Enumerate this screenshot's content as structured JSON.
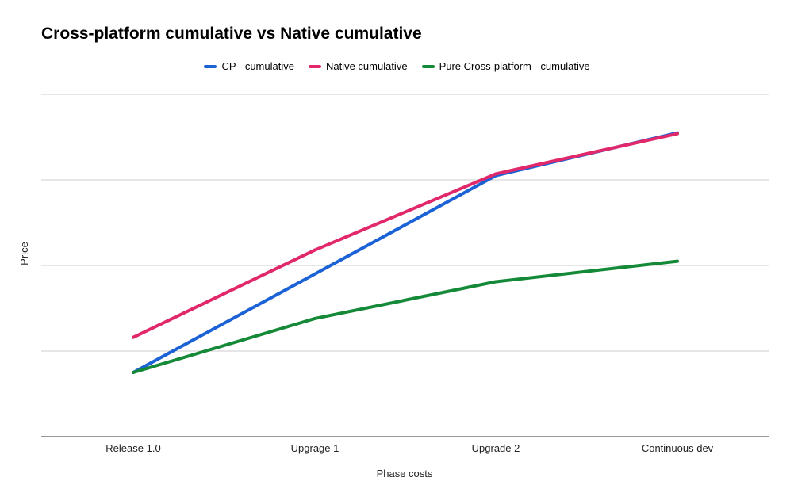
{
  "chart_data": {
    "type": "line",
    "title": "Cross-platform cumulative vs Native cumulative",
    "xlabel": "Phase costs",
    "ylabel": "Price",
    "categories": [
      "Release 1.0",
      "Upgrage 1",
      "Upgrade 2",
      "Continuous dev"
    ],
    "ylim": [
      0,
      4
    ],
    "y_tick_labels_shown": false,
    "grid": true,
    "legend_position": "top",
    "series": [
      {
        "name": "CP - cumulative",
        "color": "#1a62d6",
        "values": [
          0.75,
          1.9,
          3.05,
          3.55
        ]
      },
      {
        "name": "Native cumulative",
        "color": "#e0286a",
        "values": [
          1.16,
          2.18,
          3.07,
          3.54
        ]
      },
      {
        "name": "Pure Cross-platform - cumulative",
        "color": "#148a38",
        "values": [
          0.75,
          1.38,
          1.81,
          2.05
        ]
      }
    ]
  }
}
